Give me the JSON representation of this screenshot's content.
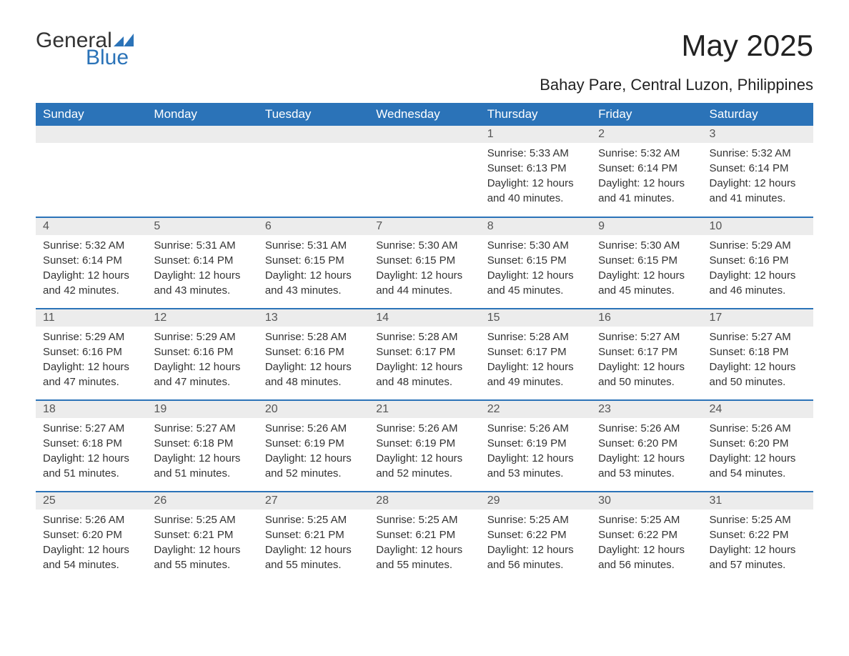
{
  "logo": {
    "word1": "General",
    "word2": "Blue",
    "shape_color": "#2b73b8"
  },
  "title": "May 2025",
  "location": "Bahay Pare, Central Luzon, Philippines",
  "colors": {
    "header_bg": "#2b73b8",
    "header_text": "#ffffff",
    "daynum_bg": "#ececec",
    "daynum_text": "#555555",
    "body_text": "#333333",
    "row_rule": "#2b73b8",
    "page_bg": "#ffffff"
  },
  "font": {
    "family": "Arial",
    "month_title_size": 42,
    "location_size": 22,
    "header_size": 17,
    "daynum_size": 16,
    "body_size": 15
  },
  "day_labels": [
    "Sunday",
    "Monday",
    "Tuesday",
    "Wednesday",
    "Thursday",
    "Friday",
    "Saturday"
  ],
  "field_labels": {
    "sunrise": "Sunrise:",
    "sunset": "Sunset:",
    "daylight": "Daylight:"
  },
  "weeks": [
    [
      null,
      null,
      null,
      null,
      {
        "n": "1",
        "sunrise": "5:33 AM",
        "sunset": "6:13 PM",
        "daylight": "12 hours and 40 minutes."
      },
      {
        "n": "2",
        "sunrise": "5:32 AM",
        "sunset": "6:14 PM",
        "daylight": "12 hours and 41 minutes."
      },
      {
        "n": "3",
        "sunrise": "5:32 AM",
        "sunset": "6:14 PM",
        "daylight": "12 hours and 41 minutes."
      }
    ],
    [
      {
        "n": "4",
        "sunrise": "5:32 AM",
        "sunset": "6:14 PM",
        "daylight": "12 hours and 42 minutes."
      },
      {
        "n": "5",
        "sunrise": "5:31 AM",
        "sunset": "6:14 PM",
        "daylight": "12 hours and 43 minutes."
      },
      {
        "n": "6",
        "sunrise": "5:31 AM",
        "sunset": "6:15 PM",
        "daylight": "12 hours and 43 minutes."
      },
      {
        "n": "7",
        "sunrise": "5:30 AM",
        "sunset": "6:15 PM",
        "daylight": "12 hours and 44 minutes."
      },
      {
        "n": "8",
        "sunrise": "5:30 AM",
        "sunset": "6:15 PM",
        "daylight": "12 hours and 45 minutes."
      },
      {
        "n": "9",
        "sunrise": "5:30 AM",
        "sunset": "6:15 PM",
        "daylight": "12 hours and 45 minutes."
      },
      {
        "n": "10",
        "sunrise": "5:29 AM",
        "sunset": "6:16 PM",
        "daylight": "12 hours and 46 minutes."
      }
    ],
    [
      {
        "n": "11",
        "sunrise": "5:29 AM",
        "sunset": "6:16 PM",
        "daylight": "12 hours and 47 minutes."
      },
      {
        "n": "12",
        "sunrise": "5:29 AM",
        "sunset": "6:16 PM",
        "daylight": "12 hours and 47 minutes."
      },
      {
        "n": "13",
        "sunrise": "5:28 AM",
        "sunset": "6:16 PM",
        "daylight": "12 hours and 48 minutes."
      },
      {
        "n": "14",
        "sunrise": "5:28 AM",
        "sunset": "6:17 PM",
        "daylight": "12 hours and 48 minutes."
      },
      {
        "n": "15",
        "sunrise": "5:28 AM",
        "sunset": "6:17 PM",
        "daylight": "12 hours and 49 minutes."
      },
      {
        "n": "16",
        "sunrise": "5:27 AM",
        "sunset": "6:17 PM",
        "daylight": "12 hours and 50 minutes."
      },
      {
        "n": "17",
        "sunrise": "5:27 AM",
        "sunset": "6:18 PM",
        "daylight": "12 hours and 50 minutes."
      }
    ],
    [
      {
        "n": "18",
        "sunrise": "5:27 AM",
        "sunset": "6:18 PM",
        "daylight": "12 hours and 51 minutes."
      },
      {
        "n": "19",
        "sunrise": "5:27 AM",
        "sunset": "6:18 PM",
        "daylight": "12 hours and 51 minutes."
      },
      {
        "n": "20",
        "sunrise": "5:26 AM",
        "sunset": "6:19 PM",
        "daylight": "12 hours and 52 minutes."
      },
      {
        "n": "21",
        "sunrise": "5:26 AM",
        "sunset": "6:19 PM",
        "daylight": "12 hours and 52 minutes."
      },
      {
        "n": "22",
        "sunrise": "5:26 AM",
        "sunset": "6:19 PM",
        "daylight": "12 hours and 53 minutes."
      },
      {
        "n": "23",
        "sunrise": "5:26 AM",
        "sunset": "6:20 PM",
        "daylight": "12 hours and 53 minutes."
      },
      {
        "n": "24",
        "sunrise": "5:26 AM",
        "sunset": "6:20 PM",
        "daylight": "12 hours and 54 minutes."
      }
    ],
    [
      {
        "n": "25",
        "sunrise": "5:26 AM",
        "sunset": "6:20 PM",
        "daylight": "12 hours and 54 minutes."
      },
      {
        "n": "26",
        "sunrise": "5:25 AM",
        "sunset": "6:21 PM",
        "daylight": "12 hours and 55 minutes."
      },
      {
        "n": "27",
        "sunrise": "5:25 AM",
        "sunset": "6:21 PM",
        "daylight": "12 hours and 55 minutes."
      },
      {
        "n": "28",
        "sunrise": "5:25 AM",
        "sunset": "6:21 PM",
        "daylight": "12 hours and 55 minutes."
      },
      {
        "n": "29",
        "sunrise": "5:25 AM",
        "sunset": "6:22 PM",
        "daylight": "12 hours and 56 minutes."
      },
      {
        "n": "30",
        "sunrise": "5:25 AM",
        "sunset": "6:22 PM",
        "daylight": "12 hours and 56 minutes."
      },
      {
        "n": "31",
        "sunrise": "5:25 AM",
        "sunset": "6:22 PM",
        "daylight": "12 hours and 57 minutes."
      }
    ]
  ]
}
